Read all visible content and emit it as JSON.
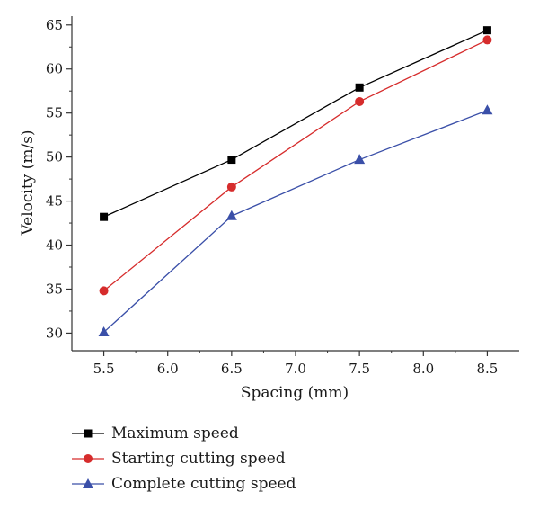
{
  "chart_data": {
    "type": "line",
    "xlabel": "Spacing (mm)",
    "ylabel": "Velocity (m/s)",
    "xlim": [
      5.25,
      8.75
    ],
    "ylim": [
      28,
      66
    ],
    "xticks": [
      "5.5",
      "6.0",
      "6.5",
      "7.0",
      "7.5",
      "8.0",
      "8.5"
    ],
    "xtick_values": [
      5.5,
      6.0,
      6.5,
      7.0,
      7.5,
      8.0,
      8.5
    ],
    "yticks": [
      "30",
      "35",
      "40",
      "45",
      "50",
      "55",
      "60",
      "65"
    ],
    "ytick_values": [
      30,
      35,
      40,
      45,
      50,
      55,
      60,
      65
    ],
    "x": [
      5.5,
      6.5,
      7.5,
      8.5
    ],
    "series": [
      {
        "name": "Maximum speed",
        "values": [
          43.2,
          49.7,
          57.9,
          64.4
        ],
        "color": "#000000",
        "marker": "square"
      },
      {
        "name": "Starting cutting speed",
        "values": [
          34.8,
          46.6,
          56.3,
          63.3
        ],
        "color": "#d62c2c",
        "marker": "circle"
      },
      {
        "name": "Complete cutting speed",
        "values": [
          30.1,
          43.3,
          49.7,
          55.3
        ],
        "color": "#3a4fa8",
        "marker": "triangle"
      }
    ],
    "grid": false,
    "legend_position": "bottom-left, below plot"
  }
}
